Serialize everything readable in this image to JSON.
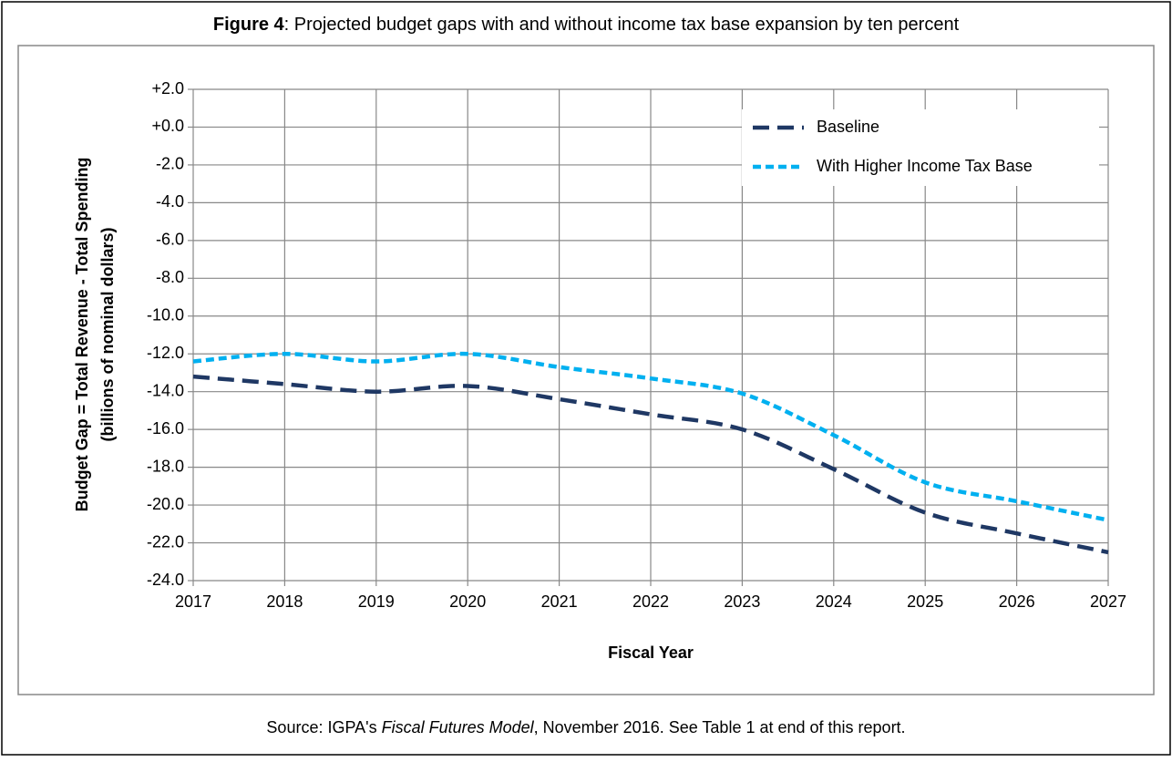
{
  "chart_data": {
    "type": "line",
    "title_prefix": "Figure 4",
    "title": ": Projected budget gaps with and without income tax base expansion by ten percent",
    "ylabel": [
      "Budget Gap = Total Revenue - Total Spending",
      "(billions of nominal dollars)"
    ],
    "xlabel": "Fiscal Year",
    "x": [
      2017,
      2018,
      2019,
      2020,
      2021,
      2022,
      2023,
      2024,
      2025,
      2026,
      2027
    ],
    "xlim": [
      2017,
      2027
    ],
    "xticks": [
      2017,
      2018,
      2019,
      2020,
      2021,
      2022,
      2023,
      2024,
      2025,
      2026,
      2027
    ],
    "ylim": [
      -24,
      2
    ],
    "yticks": [
      {
        "value": 2,
        "label": "+2.0"
      },
      {
        "value": 0,
        "label": "+0.0"
      },
      {
        "value": -2,
        "label": "-2.0"
      },
      {
        "value": -4,
        "label": "-4.0"
      },
      {
        "value": -6,
        "label": "-6.0"
      },
      {
        "value": -8,
        "label": "-8.0"
      },
      {
        "value": -10,
        "label": "-10.0"
      },
      {
        "value": -12,
        "label": "-12.0"
      },
      {
        "value": -14,
        "label": "-14.0"
      },
      {
        "value": -16,
        "label": "-16.0"
      },
      {
        "value": -18,
        "label": "-18.0"
      },
      {
        "value": -20,
        "label": "-20.0"
      },
      {
        "value": -22,
        "label": "-22.0"
      },
      {
        "value": -24,
        "label": "-24.0"
      }
    ],
    "negative_tick_color": "#ff0000",
    "grid": true,
    "legend": "upper right",
    "series": [
      {
        "name": "Baseline",
        "color": "#1f3864",
        "dash": "18 9",
        "values": [
          -13.2,
          -13.6,
          -14.0,
          -13.7,
          -14.4,
          -15.2,
          -16.0,
          -18.1,
          -20.4,
          -21.5,
          -22.5
        ]
      },
      {
        "name": "With Higher Income Tax Base",
        "color": "#00b0f0",
        "dash": "9 5",
        "values": [
          -12.4,
          -12.0,
          -12.4,
          -12.0,
          -12.7,
          -13.3,
          -14.1,
          -16.3,
          -18.8,
          -19.8,
          -20.8
        ]
      }
    ],
    "source": [
      "Source: IGPA's ",
      "Fiscal Futures Model",
      ", November 2016. See Table 1 at end of this report."
    ]
  }
}
